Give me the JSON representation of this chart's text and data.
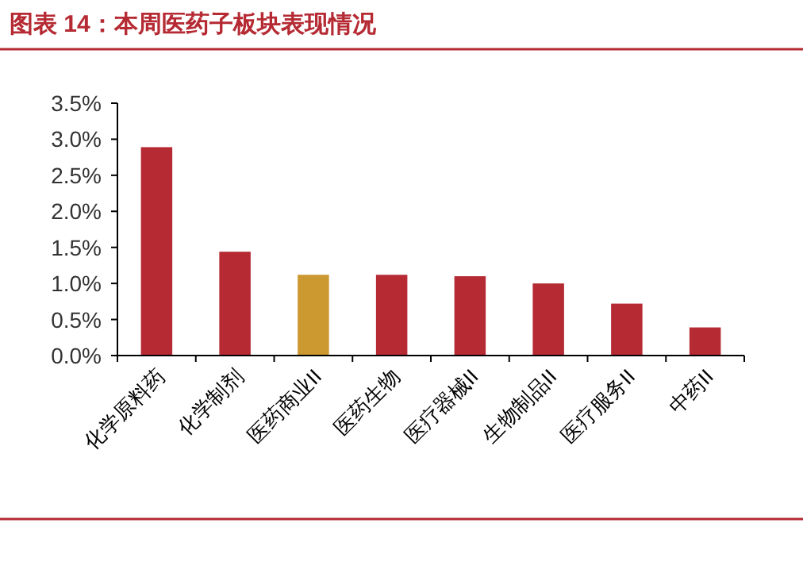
{
  "chart_data": {
    "type": "bar",
    "title": "图表 14：本周医药子板块表现情况",
    "categories": [
      "化学原料药",
      "化学制剂",
      "医药商业II",
      "医药生物",
      "医疗器械II",
      "生物制品II",
      "医疗服务II",
      "中药II"
    ],
    "values": [
      2.89,
      1.44,
      1.12,
      1.12,
      1.1,
      1.0,
      0.72,
      0.39
    ],
    "colors": [
      "#b52a33",
      "#b52a33",
      "#cc9830",
      "#b52a33",
      "#b52a33",
      "#b52a33",
      "#b52a33",
      "#b52a33"
    ],
    "ylim": [
      0,
      3.5
    ],
    "yticks": [
      {
        "value": 0,
        "label": "0.0%"
      },
      {
        "value": 0.5,
        "label": "0.5%"
      },
      {
        "value": 1,
        "label": "1.0%"
      },
      {
        "value": 1.5,
        "label": "1.5%"
      },
      {
        "value": 2,
        "label": "2.0%"
      },
      {
        "value": 2.5,
        "label": "2.5%"
      },
      {
        "value": 3,
        "label": "3.0%"
      },
      {
        "value": 3.5,
        "label": "3.5%"
      }
    ]
  }
}
